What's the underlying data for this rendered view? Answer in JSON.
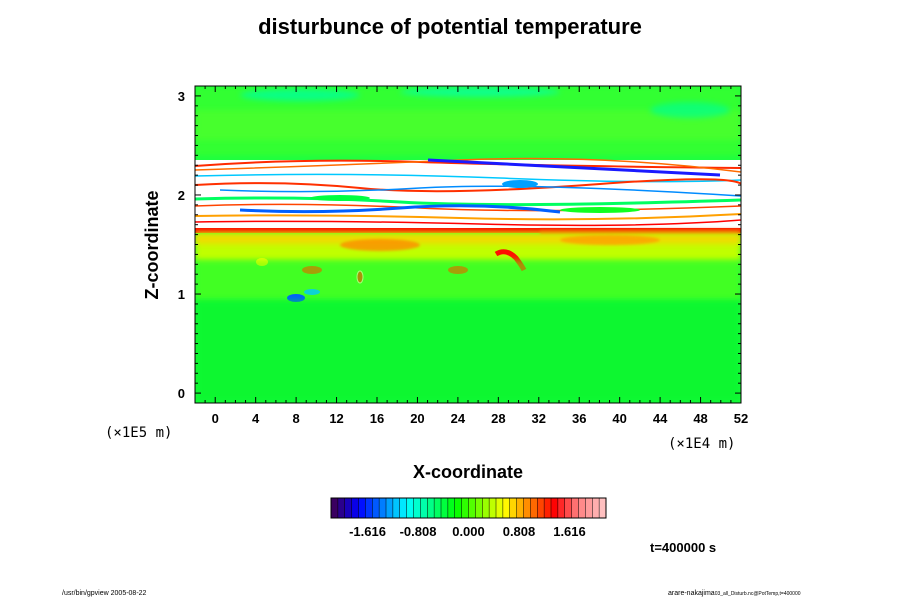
{
  "chart_data": {
    "type": "heatmap",
    "title": "disturbunce of potential temperature",
    "xlabel": "X-coordinate",
    "ylabel": "Z-coordinate",
    "x_unit": "(×1E4 m)",
    "y_unit": "(×1E5 m)",
    "xlim": [
      -2,
      52
    ],
    "ylim": [
      -0.1,
      3.1
    ],
    "x_ticks": [
      "0",
      "4",
      "8",
      "12",
      "16",
      "20",
      "24",
      "28",
      "32",
      "36",
      "40",
      "44",
      "48",
      "52"
    ],
    "y_ticks": [
      "0",
      "1",
      "2",
      "3"
    ],
    "colorbar": {
      "range": [
        -2.2,
        2.2
      ],
      "tick_values": [
        -1.616,
        -0.808,
        0.0,
        0.808,
        1.616
      ],
      "tick_labels": [
        "-1.616",
        "-0.808",
        "0.000",
        "0.808",
        "1.616"
      ],
      "colors": [
        "#3a0060",
        "#0000ff",
        "#0080ff",
        "#00ffff",
        "#00ff80",
        "#00ff00",
        "#80ff00",
        "#ffff00",
        "#ff8000",
        "#ff0000",
        "#ff8080",
        "#ffc0c0"
      ]
    },
    "time_label": "t=400000 s"
  },
  "footer": {
    "left": "/usr/bin/gpview 2005-08-22",
    "right_main": "arare-nakajima",
    "right_small": "03_all_Disturb.nc@PotTemp,t=400000"
  }
}
